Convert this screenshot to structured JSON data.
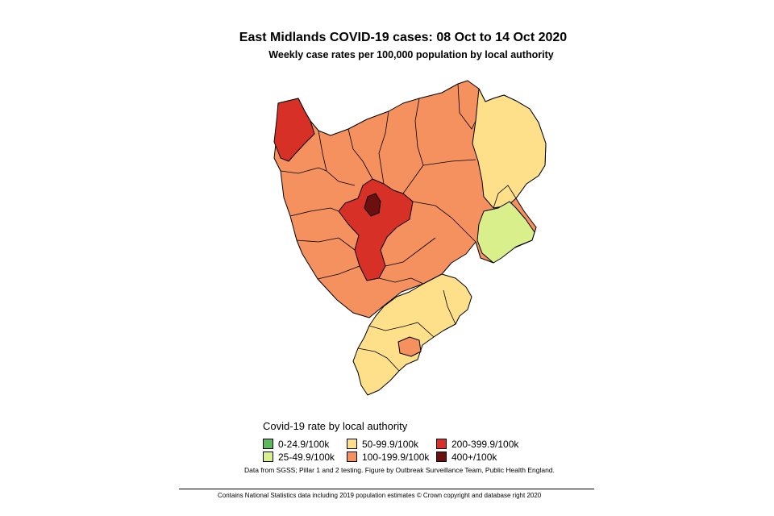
{
  "title": "East Midlands COVID-19 cases: 08 Oct to 14 Oct 2020",
  "subtitle": "Weekly case rates per 100,000 population by local authority",
  "legend": {
    "title": "Covid-19 rate by local authority",
    "items": [
      {
        "label": "0-24.9/100k",
        "color": "#5cb85c"
      },
      {
        "label": "25-49.9/100k",
        "color": "#d9ef8b"
      },
      {
        "label": "50-99.9/100k",
        "color": "#fee08b"
      },
      {
        "label": "100-199.9/100k",
        "color": "#f4915e"
      },
      {
        "label": "200-399.9/100k",
        "color": "#d73027"
      },
      {
        "label": "400+/100k",
        "color": "#6b0f0f"
      }
    ]
  },
  "source_note": "Data from SGSS; Pillar 1 and 2 testing. Figure by Outbreak Surveillance Team, Public Health England.",
  "copyright": "Contains National Statistics data including 2019 population estimates © Crown copyright and database right 2020"
}
